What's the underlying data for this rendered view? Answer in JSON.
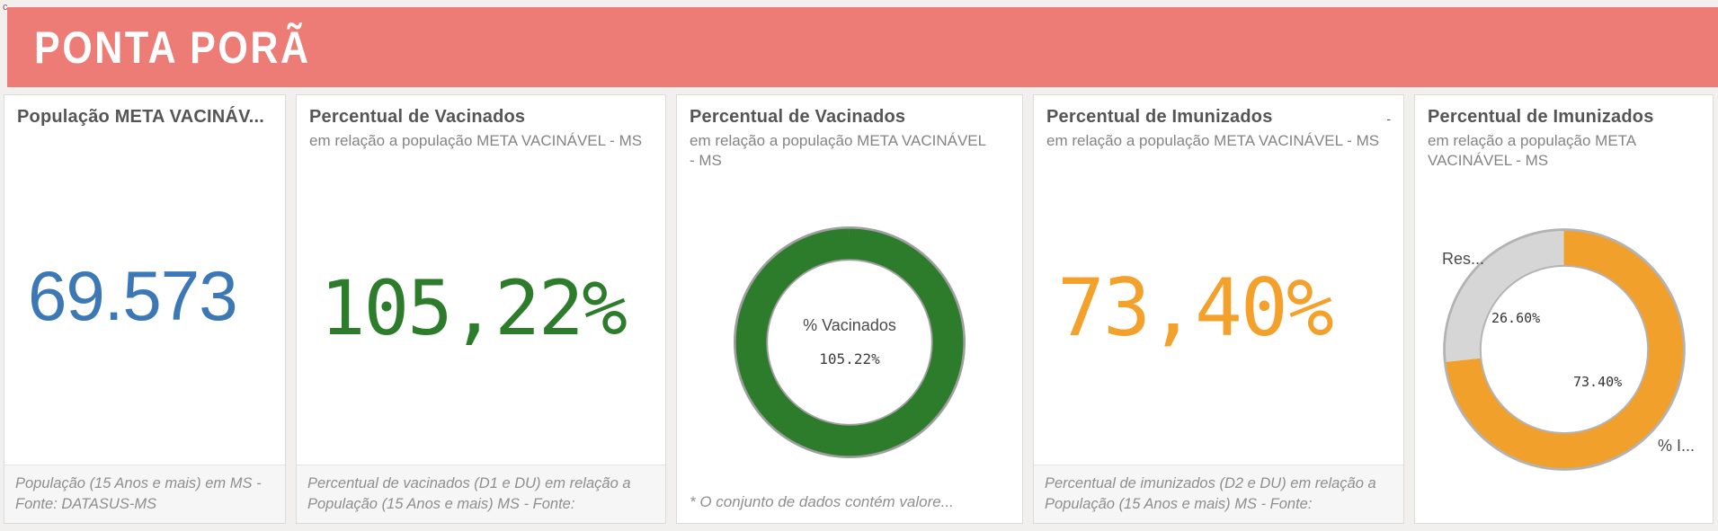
{
  "header": {
    "title": "PONTA PORÃ",
    "corner_mark": "c"
  },
  "colors": {
    "header_bg": "#ed7c77",
    "kpi_population_blue": "#3c78b5",
    "kpi_vaccinated_green": "#2c7c2c",
    "kpi_immunized_orange": "#f4a12b",
    "donut_green": "#2c7c2c",
    "donut_orange": "#f2a02c",
    "donut_gray": "#d6d6d6"
  },
  "cards": [
    {
      "title": "População META VACINÁV...",
      "kpi": "69.573",
      "footer": "População (15 Anos e mais) em MS - Fonte: DATASUS-MS"
    },
    {
      "title": "Percentual de Vacinados",
      "subtitle": "em relação a população META VACINÁVEL - MS",
      "kpi": "105,22%",
      "footer": "Percentual de vacinados (D1 e DU) em relação a População (15 Anos e mais) MS - Fonte:"
    },
    {
      "title": "Percentual de Vacinados",
      "subtitle": "em relação a população META VACINÁVEL - MS",
      "footer": "* O conjunto de dados contém valore..."
    },
    {
      "title": "Percentual de Imunizados",
      "subtitle": "em relação a população META VACINÁVEL - MS",
      "kpi": "73,40%",
      "footer": "Percentual de imunizados (D2 e DU) em relação a População (15 Anos e mais) MS - Fonte:",
      "corner_mark": "-"
    },
    {
      "title": "Percentual de Imunizados",
      "subtitle": "em relação a população META VACINÁVEL - MS"
    }
  ],
  "chart_data": [
    {
      "type": "pie",
      "donut": true,
      "title": "Percentual de Vacinados em relação a população META VACINÁVEL - MS",
      "center_label": "% Vacinados",
      "center_value": "105.22%",
      "slices": [
        {
          "label": "% Vacinados",
          "value": 105.22,
          "display": "105.22%",
          "color": "#2c7c2c"
        }
      ],
      "outline": "#9e9e9e",
      "legend_position": "none"
    },
    {
      "type": "pie",
      "donut": true,
      "title": "Percentual de Imunizados em relação a população META VACINÁVEL - MS",
      "slices": [
        {
          "label": "% I...",
          "value": 73.4,
          "display": "73.40%",
          "color": "#f2a02c"
        },
        {
          "label": "Res...",
          "value": 26.6,
          "display": "26.60%",
          "color": "#d6d6d6"
        }
      ],
      "outline": "#b3b3b3",
      "legend_position": "none"
    }
  ]
}
